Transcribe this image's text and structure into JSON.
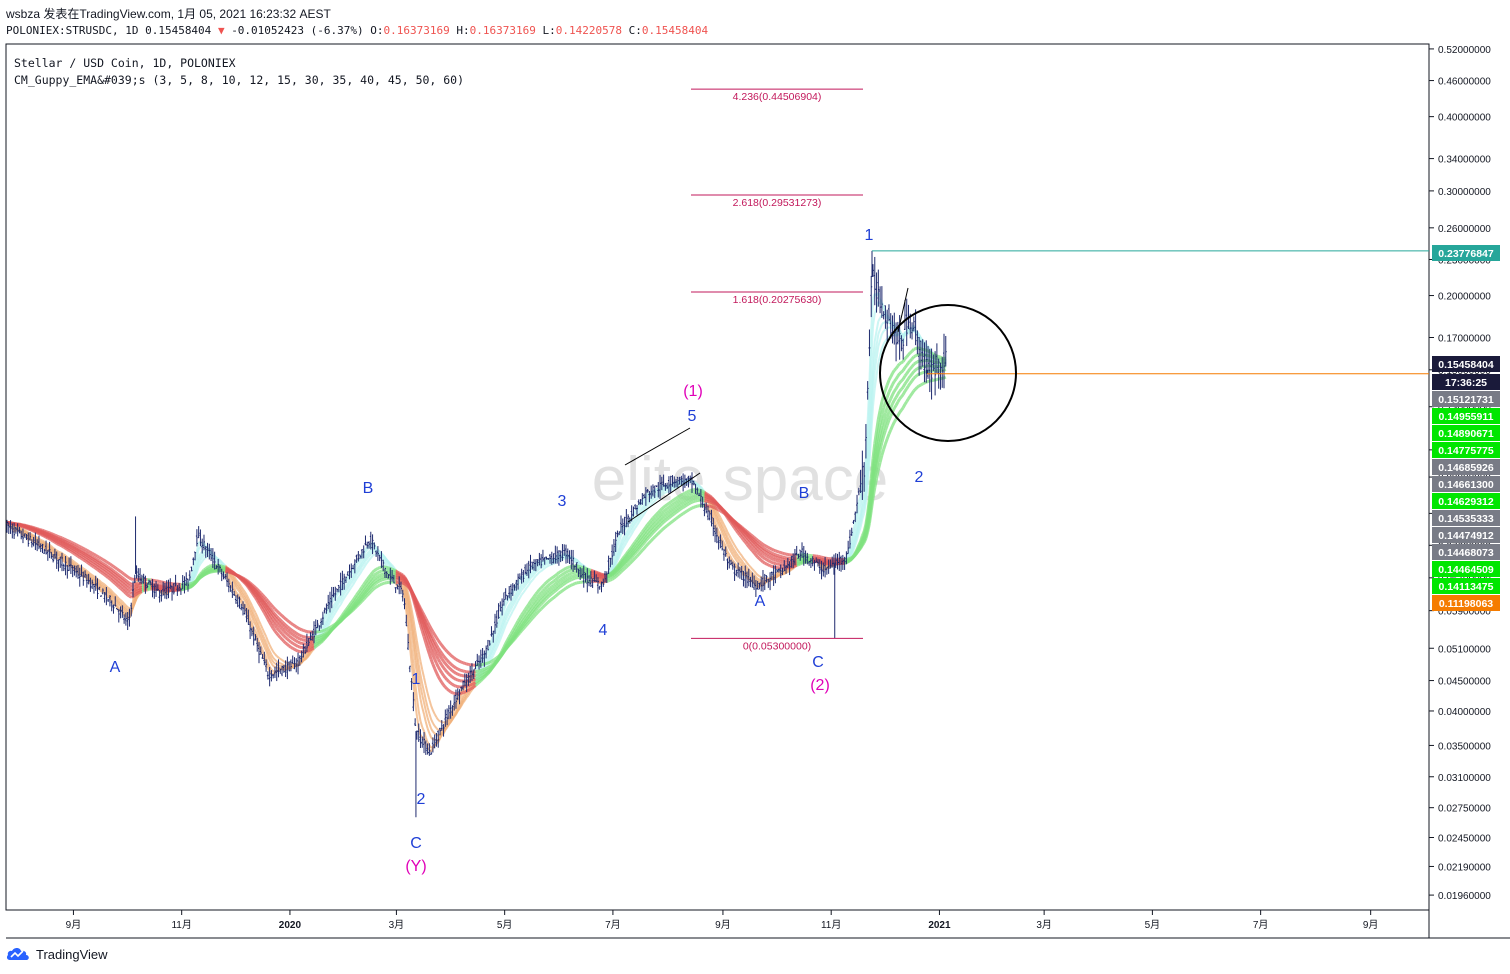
{
  "header": {
    "line1": "wsbza 发表在TradingView.com, 1月 05, 2021 16:23:32 AEST",
    "symbol": "POLONIEX:STRUSDC, 1D",
    "last": "0.15458404",
    "change": "-0.01052423 (-6.37%)",
    "o_label": "O:",
    "o": "0.16373169",
    "h_label": "H:",
    "h": "0.16373169",
    "l_label": "L:",
    "l": "0.14220578",
    "c_label": "C:",
    "c": "0.15458404"
  },
  "legend": {
    "line1": "Stellar / USD Coin, 1D, POLONIEX",
    "line2": "CM_Guppy_EMA&#039;s (3, 5, 8, 10, 12, 15, 30, 35, 40, 45, 50, 60)"
  },
  "watermark": "elite space",
  "footer": {
    "brand": "TradingView"
  },
  "colors": {
    "candle": "#1e2a6e",
    "ema_bull_fast": "#7fe27f",
    "ema_bull_light": "#b9f3f0",
    "ema_bear": "#e05a5a",
    "ema_bear_light": "#f0b07a",
    "fib": "#c2185b",
    "wave_blue": "#1f3fd6",
    "wave_magenta": "#e000b8",
    "teal_line": "#26a69a",
    "orange_line": "#f57c00"
  },
  "chart_data": {
    "type": "candlestick",
    "symbol": "POLONIEX:STRUSDC",
    "timeframe": "1D",
    "y_scale": "log",
    "ylim": [
      0.0185,
      0.53
    ],
    "x_ticks": [
      "9月",
      "11月",
      "2020",
      "3月",
      "5月",
      "7月",
      "9月",
      "11月",
      "2021",
      "3月",
      "5月",
      "7月",
      "9月"
    ],
    "y_ticks": [
      "0.52000000",
      "0.46000000",
      "0.40000000",
      "0.34000000",
      "0.30000000",
      "0.26000000",
      "0.23000000",
      "0.20000000",
      "0.17000000",
      "0.15000000",
      "0.13000000",
      "0.11000000",
      "0.09900000",
      "0.08600000",
      "0.07600000",
      "0.06700000",
      "0.05900000",
      "0.05100000",
      "0.04500000",
      "0.04000000",
      "0.03500000",
      "0.03100000",
      "0.02750000",
      "0.02450000",
      "0.02190000",
      "0.01960000"
    ],
    "price_path": [
      [
        "2019-07-25",
        0.082
      ],
      [
        "2019-08-15",
        0.075
      ],
      [
        "2019-09-10",
        0.066
      ],
      [
        "2019-09-25",
        0.06
      ],
      [
        "2019-10-02",
        0.056
      ],
      [
        "2019-10-06",
        0.068
      ],
      [
        "2019-10-20",
        0.063
      ],
      [
        "2019-11-05",
        0.066
      ],
      [
        "2019-11-10",
        0.079
      ],
      [
        "2019-11-20",
        0.071
      ],
      [
        "2019-12-05",
        0.06
      ],
      [
        "2019-12-20",
        0.046
      ],
      [
        "2020-01-05",
        0.048
      ],
      [
        "2020-01-25",
        0.062
      ],
      [
        "2020-02-15",
        0.078
      ],
      [
        "2020-02-25",
        0.068
      ],
      [
        "2020-03-05",
        0.063
      ],
      [
        "2020-03-12",
        0.037
      ],
      [
        "2020-03-20",
        0.034
      ],
      [
        "2020-04-05",
        0.043
      ],
      [
        "2020-04-20",
        0.05
      ],
      [
        "2020-05-01",
        0.062
      ],
      [
        "2020-05-15",
        0.07
      ],
      [
        "2020-06-05",
        0.074
      ],
      [
        "2020-06-15",
        0.067
      ],
      [
        "2020-06-25",
        0.065
      ],
      [
        "2020-07-05",
        0.081
      ],
      [
        "2020-07-20",
        0.093
      ],
      [
        "2020-08-05",
        0.098
      ],
      [
        "2020-08-15",
        0.097
      ],
      [
        "2020-08-25",
        0.084
      ],
      [
        "2020-09-05",
        0.07
      ],
      [
        "2020-09-20",
        0.065
      ],
      [
        "2020-10-05",
        0.069
      ],
      [
        "2020-10-15",
        0.074
      ],
      [
        "2020-10-28",
        0.069
      ],
      [
        "2020-11-10",
        0.073
      ],
      [
        "2020-11-20",
        0.105
      ],
      [
        "2020-11-24",
        0.215
      ],
      [
        "2020-12-01",
        0.19
      ],
      [
        "2020-12-10",
        0.165
      ],
      [
        "2020-12-15",
        0.185
      ],
      [
        "2020-12-25",
        0.15
      ],
      [
        "2021-01-05",
        0.1546
      ]
    ],
    "ema_bands": [
      {
        "name": "fast",
        "ribbon": true
      },
      {
        "name": "slow",
        "ribbon": true
      }
    ],
    "fibonacci": [
      {
        "ratio": "4.236",
        "price": 0.44506904,
        "label": "4.236(0.44506904)"
      },
      {
        "ratio": "2.618",
        "price": 0.29531273,
        "label": "2.618(0.29531273)"
      },
      {
        "ratio": "1.618",
        "price": 0.2027563,
        "label": "1.618(0.20275630)"
      },
      {
        "ratio": "0",
        "price": 0.053,
        "label": "0(0.05300000)"
      }
    ],
    "horizontal_lines": [
      {
        "price": 0.23776847,
        "label": "0.23776847",
        "color": "#26a69a"
      },
      {
        "price": 0.14775775,
        "color": "#f57c00"
      }
    ],
    "price_tags": [
      {
        "label": "0.23776847",
        "bg": "#26a69a",
        "fg": "#ffffff"
      },
      {
        "label": "0.15458404",
        "bg": "#1a1a3a",
        "fg": "#ffffff"
      },
      {
        "label": "17:36:25",
        "bg": "#1a1a3a",
        "fg": "#ffffff"
      },
      {
        "label": "0.15121731",
        "bg": "#787b86",
        "fg": "#ffffff"
      },
      {
        "label": "0.14955911",
        "bg": "#00e600",
        "fg": "#ffffff"
      },
      {
        "label": "0.14890671",
        "bg": "#00e600",
        "fg": "#ffffff"
      },
      {
        "label": "0.14775775",
        "bg": "#00e600",
        "fg": "#ffffff"
      },
      {
        "label": "0.14685926",
        "bg": "#787b86",
        "fg": "#ffffff"
      },
      {
        "label": "0.14661300",
        "bg": "#787b86",
        "fg": "#ffffff"
      },
      {
        "label": "0.14629312",
        "bg": "#00e600",
        "fg": "#ffffff"
      },
      {
        "label": "0.14535333",
        "bg": "#787b86",
        "fg": "#ffffff"
      },
      {
        "label": "0.14474912",
        "bg": "#787b86",
        "fg": "#ffffff"
      },
      {
        "label": "0.14468073",
        "bg": "#787b86",
        "fg": "#ffffff"
      },
      {
        "label": "0.14464509",
        "bg": "#00e600",
        "fg": "#ffffff"
      },
      {
        "label": "0.14113475",
        "bg": "#00e600",
        "fg": "#ffffff"
      },
      {
        "label": "0.11198063",
        "bg": "#f57c00",
        "fg": "#ffffff"
      }
    ],
    "wave_labels": [
      {
        "text": "A",
        "color": "blue",
        "date": "2019-10-02"
      },
      {
        "text": "B",
        "color": "blue",
        "date": "2020-02-15"
      },
      {
        "text": "1",
        "color": "blue",
        "date": "2020-03-12"
      },
      {
        "text": "2",
        "color": "blue",
        "date": "2020-03-13"
      },
      {
        "text": "C",
        "color": "blue",
        "date": "2020-03-12"
      },
      {
        "text": "(Y)",
        "color": "magenta",
        "date": "2020-03-12"
      },
      {
        "text": "3",
        "color": "blue",
        "date": "2020-06-05"
      },
      {
        "text": "4",
        "color": "blue",
        "date": "2020-06-25"
      },
      {
        "text": "5",
        "color": "blue",
        "date": "2020-08-15"
      },
      {
        "text": "(1)",
        "color": "magenta",
        "date": "2020-08-15"
      },
      {
        "text": "A",
        "color": "blue",
        "date": "2020-09-20"
      },
      {
        "text": "B",
        "color": "blue",
        "date": "2020-10-15"
      },
      {
        "text": "C",
        "color": "blue",
        "date": "2020-11-03"
      },
      {
        "text": "(2)",
        "color": "magenta",
        "date": "2020-11-03"
      },
      {
        "text": "1",
        "color": "blue",
        "date": "2020-11-24"
      },
      {
        "text": "2",
        "color": "blue",
        "date": "2020-12-25"
      }
    ]
  }
}
